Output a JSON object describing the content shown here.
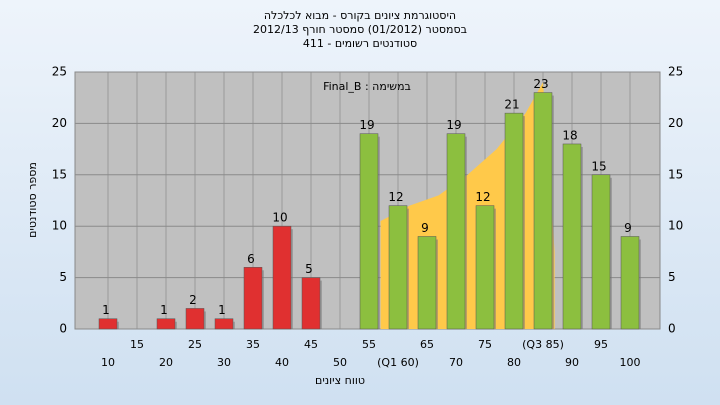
{
  "chart_data": {
    "type": "bar",
    "title": [
      "היסטוגרמת ציונים בקורס - מבוא לכלכלה",
      "בסמסטר  (01/2012)  סמסטר חורף 2012/13",
      "סטודנטים רשומים - 411"
    ],
    "annotation": "Final_B : במשימה",
    "ylabel": "מספר סטודנטים",
    "xlabel": "טווח ציונים",
    "categories": [
      "10",
      "15",
      "20",
      "25",
      "30",
      "35",
      "40",
      "45",
      "50",
      "55",
      "(Q1 60)",
      "65",
      "70",
      "75",
      "80",
      "(Q3 85)",
      "90",
      "95",
      "100"
    ],
    "values": [
      1,
      null,
      1,
      2,
      1,
      6,
      10,
      5,
      null,
      19,
      12,
      9,
      19,
      12,
      21,
      23,
      18,
      15,
      9
    ],
    "colors": [
      "#e03030",
      "#e03030",
      "#e03030",
      "#e03030",
      "#e03030",
      "#e03030",
      "#e03030",
      "#e03030",
      "#e03030",
      "#8cbf3f",
      "#8cbf3f",
      "#8cbf3f",
      "#8cbf3f",
      "#8cbf3f",
      "#8cbf3f",
      "#8cbf3f",
      "#8cbf3f",
      "#8cbf3f",
      "#8cbf3f"
    ],
    "area": {
      "color": "#ffc94a",
      "x": [
        57,
        62,
        67,
        72,
        77,
        82,
        85,
        87
      ],
      "values": [
        10.5,
        12,
        13,
        15,
        17.5,
        21,
        24,
        7.5
      ]
    },
    "ylim": [
      0,
      25
    ],
    "yticks": [
      0,
      5,
      10,
      15,
      20,
      25
    ],
    "grid": true
  }
}
